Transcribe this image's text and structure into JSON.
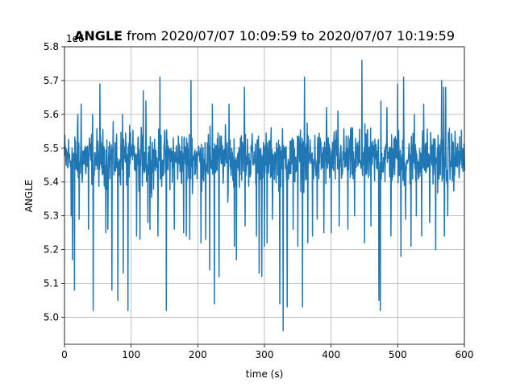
{
  "figure": {
    "title_bold": "ANGLE",
    "title_rest": " from 2020/07/07 10:09:59 to 2020/07/07 10:19:59",
    "offset_label": "1e6"
  },
  "colors": {
    "line": "#1f77b4",
    "grid": "#b0b0b0",
    "axes": "#000000",
    "background": "#ffffff"
  },
  "chart_data": {
    "type": "line",
    "title": "ANGLE from 2020/07/07 10:09:59 to 2020/07/07 10:19:59",
    "xlabel": "time (s)",
    "ylabel": "ANGLE",
    "y_scale_multiplier": 1000000,
    "xlim": [
      0,
      600
    ],
    "ylim": [
      4.92,
      5.8
    ],
    "grid": true,
    "legend": "none",
    "xticks": [
      0,
      100,
      200,
      300,
      400,
      500,
      600
    ],
    "xtick_labels": [
      "0",
      "100",
      "200",
      "300",
      "400",
      "500",
      "600"
    ],
    "yticks": [
      5.0,
      5.1,
      5.2,
      5.3,
      5.4,
      5.5,
      5.6,
      5.7,
      5.8
    ],
    "ytick_labels": [
      "5.0",
      "5.1",
      "5.2",
      "5.3",
      "5.4",
      "5.5",
      "5.6",
      "5.7",
      "5.8"
    ],
    "series": [
      {
        "name": "",
        "baseline": 5.47,
        "sample_count": 600,
        "band_low": 5.38,
        "band_high": 5.56,
        "spikes_up": [
          [
            20,
            5.6
          ],
          [
            25,
            5.63
          ],
          [
            42,
            5.6
          ],
          [
            53,
            5.69
          ],
          [
            65,
            5.61
          ],
          [
            87,
            5.6
          ],
          [
            108,
            5.62
          ],
          [
            118,
            5.67
          ],
          [
            122,
            5.64
          ],
          [
            143,
            5.71
          ],
          [
            165,
            5.6
          ],
          [
            190,
            5.7
          ],
          [
            222,
            5.63
          ],
          [
            247,
            5.63
          ],
          [
            270,
            5.68
          ],
          [
            296,
            5.6
          ],
          [
            360,
            5.71
          ],
          [
            393,
            5.62
          ],
          [
            410,
            5.61
          ],
          [
            446,
            5.76
          ],
          [
            450,
            5.75
          ],
          [
            460,
            5.62
          ],
          [
            475,
            5.64
          ],
          [
            484,
            5.62
          ],
          [
            500,
            5.69
          ],
          [
            509,
            5.71
          ],
          [
            525,
            5.6
          ],
          [
            539,
            5.63
          ],
          [
            557,
            5.62
          ],
          [
            566,
            5.7
          ],
          [
            569,
            5.68
          ],
          [
            572,
            5.68
          ],
          [
            575,
            5.65
          ]
        ],
        "spikes_down": [
          [
            10,
            5.3
          ],
          [
            12,
            5.17
          ],
          [
            15,
            5.08
          ],
          [
            22,
            5.29
          ],
          [
            36,
            5.26
          ],
          [
            43,
            5.02
          ],
          [
            62,
            5.25
          ],
          [
            65,
            5.26
          ],
          [
            71,
            5.08
          ],
          [
            80,
            5.05
          ],
          [
            88,
            5.13
          ],
          [
            95,
            5.02
          ],
          [
            108,
            5.24
          ],
          [
            113,
            5.23
          ],
          [
            125,
            5.28
          ],
          [
            128,
            5.26
          ],
          [
            140,
            5.24
          ],
          [
            153,
            5.02
          ],
          [
            165,
            5.26
          ],
          [
            179,
            5.25
          ],
          [
            183,
            5.24
          ],
          [
            188,
            5.23
          ],
          [
            205,
            5.22
          ],
          [
            212,
            5.23
          ],
          [
            218,
            5.14
          ],
          [
            225,
            5.04
          ],
          [
            232,
            5.12
          ],
          [
            245,
            5.34
          ],
          [
            255,
            5.21
          ],
          [
            258,
            5.17
          ],
          [
            271,
            5.27
          ],
          [
            288,
            5.24
          ],
          [
            292,
            5.13
          ],
          [
            296,
            5.12
          ],
          [
            300,
            5.21
          ],
          [
            304,
            5.22
          ],
          [
            312,
            5.29
          ],
          [
            323,
            5.04
          ],
          [
            328,
            4.96
          ],
          [
            334,
            5.03
          ],
          [
            343,
            5.26
          ],
          [
            350,
            5.21
          ],
          [
            357,
            5.03
          ],
          [
            365,
            5.22
          ],
          [
            372,
            5.24
          ],
          [
            379,
            5.29
          ],
          [
            389,
            5.25
          ],
          [
            400,
            5.25
          ],
          [
            412,
            5.27
          ],
          [
            425,
            5.26
          ],
          [
            435,
            5.3
          ],
          [
            450,
            5.22
          ],
          [
            460,
            5.27
          ],
          [
            472,
            5.05
          ],
          [
            474,
            5.02
          ],
          [
            490,
            5.24
          ],
          [
            505,
            5.18
          ],
          [
            512,
            5.29
          ],
          [
            520,
            5.21
          ],
          [
            528,
            5.3
          ],
          [
            536,
            5.24
          ],
          [
            548,
            5.28
          ],
          [
            557,
            5.2
          ],
          [
            570,
            5.24
          ],
          [
            575,
            5.3
          ]
        ]
      }
    ]
  }
}
